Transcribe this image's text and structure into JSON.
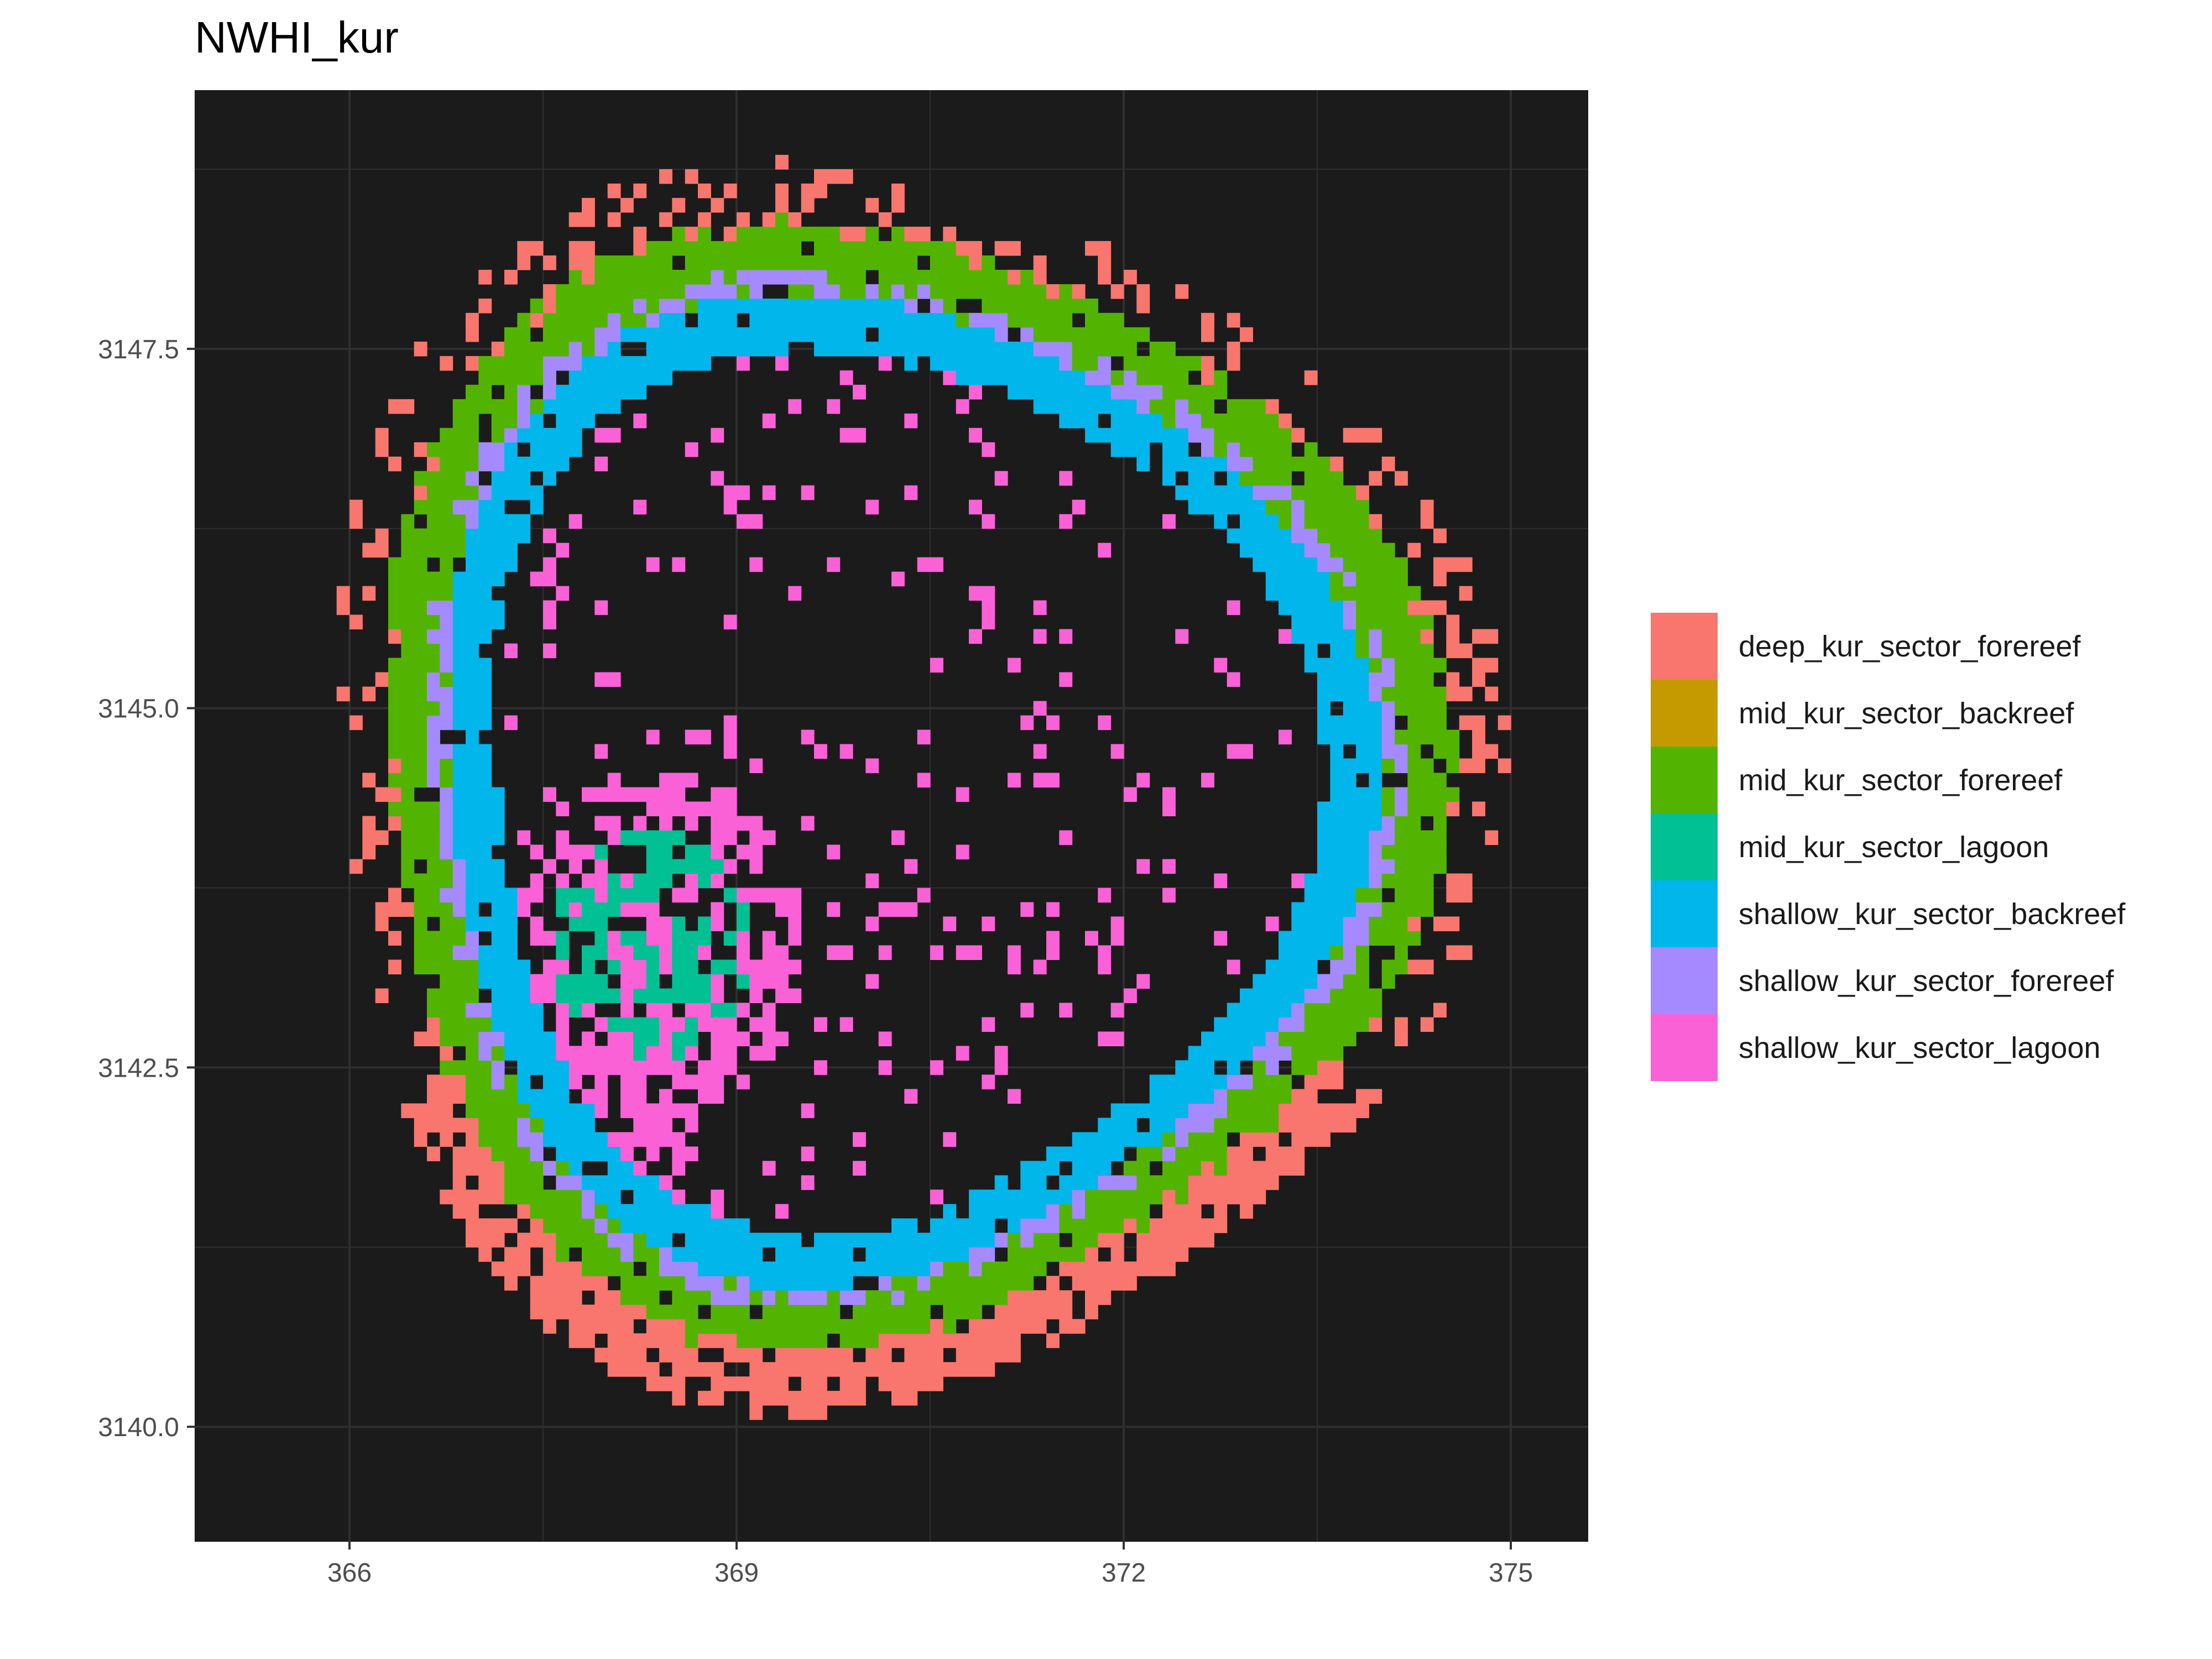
{
  "title": "NWHI_kur",
  "chart_data": {
    "type": "raster_map",
    "title": "NWHI_kur",
    "xlabel": "",
    "ylabel": "",
    "xlim": [
      364.8,
      375.6
    ],
    "ylim": [
      3139.2,
      3149.3
    ],
    "x_ticks": [
      366,
      369,
      372,
      375
    ],
    "x_tick_labels": [
      "366",
      "369",
      "372",
      "375"
    ],
    "y_ticks": [
      3140.0,
      3142.5,
      3145.0,
      3147.5
    ],
    "y_tick_labels": [
      "3140.0",
      "3142.5",
      "3145.0",
      "3147.5"
    ],
    "grid": true,
    "panel_background": "#1b1b1b",
    "legend_position": "right",
    "legend": [
      {
        "label": "deep_kur_sector_forereef",
        "color": "#F8766D"
      },
      {
        "label": "mid_kur_sector_backreef",
        "color": "#C49A00"
      },
      {
        "label": "mid_kur_sector_forereef",
        "color": "#53B400"
      },
      {
        "label": "mid_kur_sector_lagoon",
        "color": "#00C094"
      },
      {
        "label": "shallow_kur_sector_backreef",
        "color": "#00B6EB"
      },
      {
        "label": "shallow_kur_sector_forereef",
        "color": "#A58AFF"
      },
      {
        "label": "shallow_kur_sector_lagoon",
        "color": "#FB61D7"
      }
    ],
    "atoll_center": [
      370.0,
      3144.3
    ],
    "regions": [
      {
        "class": "deep_kur_sector_forereef",
        "shape": "ring",
        "r_inner": 0.97,
        "r_outer": 1.09
      },
      {
        "class": "mid_kur_sector_forereef",
        "shape": "ring",
        "r_inner": 0.905,
        "r_outer": 0.99
      },
      {
        "class": "shallow_kur_sector_forereef",
        "shape": "ring",
        "r_inner": 0.865,
        "r_outer": 0.905
      },
      {
        "class": "shallow_kur_sector_backreef",
        "shape": "ring",
        "r_inner": 0.77,
        "r_outer": 0.87
      },
      {
        "class": "mid_kur_sector_lagoon",
        "shape": "patch",
        "center": [
          368.3,
          3143.3
        ]
      },
      {
        "class": "shallow_kur_sector_lagoon",
        "shape": "patch",
        "center": [
          368.0,
          3143.0
        ]
      }
    ]
  }
}
